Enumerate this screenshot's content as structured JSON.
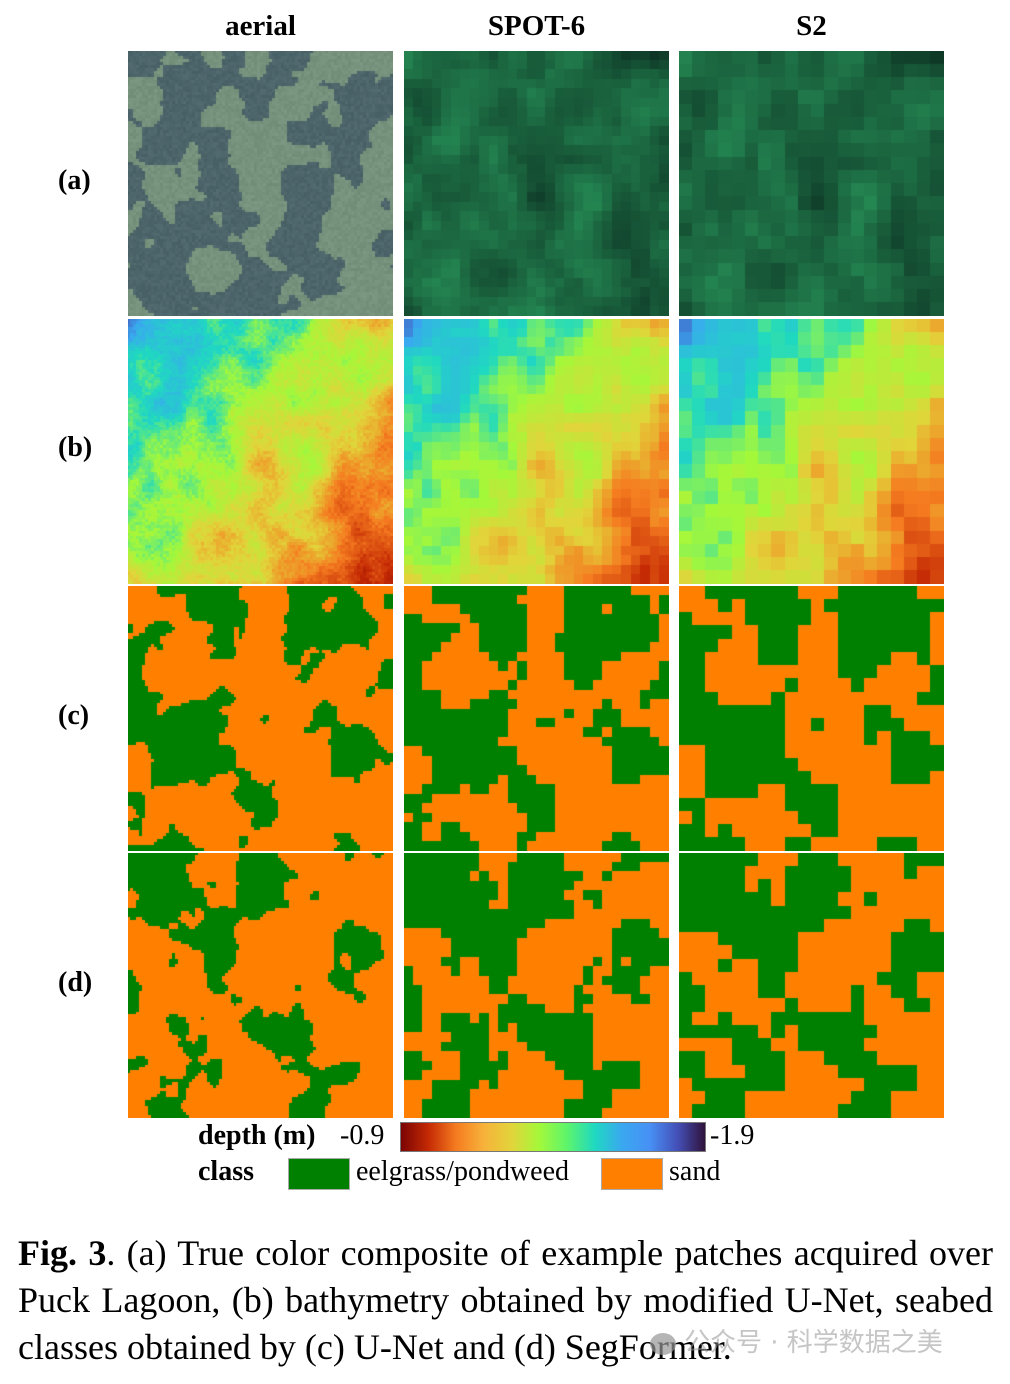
{
  "figure": {
    "column_headers": [
      "aerial",
      "SPOT-6",
      "S2"
    ],
    "row_labels": [
      "(a)",
      "(b)",
      "(c)",
      "(d)"
    ],
    "legend": {
      "depth_label": "depth (m)",
      "depth_min": "-0.9",
      "depth_max": "-1.9",
      "class_label": "class",
      "classes": [
        {
          "name": "eelgrass/pondweed",
          "color": "#008000"
        },
        {
          "name": "sand",
          "color": "#ff8000"
        }
      ]
    },
    "caption": {
      "fig_label": "Fig. 3",
      "text": ". (a) True color composite of example patches acquired over Puck Lagoon, (b) bathymetry obtained by modified U-Net, seabed classes obtained by (c) U-Net and (d) SegFormer."
    },
    "watermark": "公众号 · 科学数据之美"
  }
}
